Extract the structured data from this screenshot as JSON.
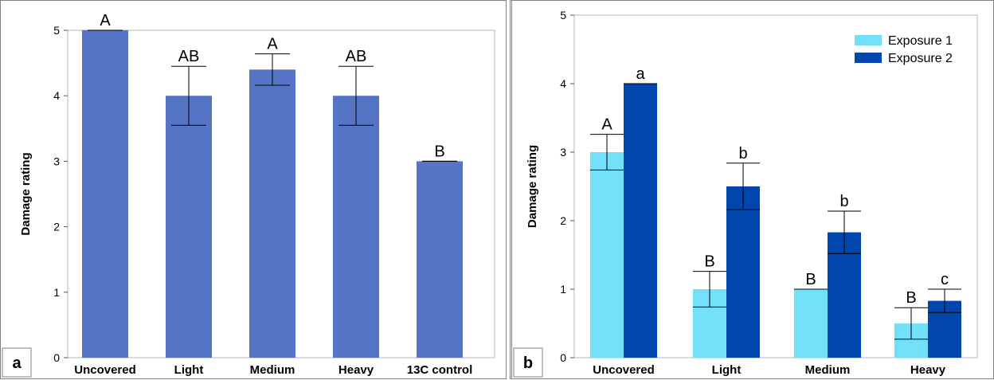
{
  "chart_data": [
    {
      "panel_label": "a",
      "type": "bar",
      "ylabel": "Damage rating",
      "xlabel": "",
      "ylim": [
        0,
        5
      ],
      "yticks": [
        "0",
        "1",
        "2",
        "3",
        "4",
        "5"
      ],
      "categories": [
        "Uncovered",
        "Light",
        "Medium",
        "Heavy",
        "13C control"
      ],
      "series": [
        {
          "values": [
            5.0,
            4.0,
            4.4,
            4.0,
            3.0
          ],
          "errors": [
            0,
            0.45,
            0.24,
            0.45,
            0
          ],
          "labels": [
            "A",
            "AB",
            "A",
            "AB",
            "B"
          ],
          "color": "#5574c6"
        }
      ],
      "grid": false,
      "legend": "none"
    },
    {
      "panel_label": "b",
      "type": "bar",
      "ylabel": "Damage rating",
      "xlabel": "",
      "ylim": [
        0,
        5
      ],
      "yticks": [
        "0",
        "1",
        "2",
        "3",
        "4",
        "5"
      ],
      "categories": [
        "Uncovered",
        "Light",
        "Medium",
        "Heavy"
      ],
      "series": [
        {
          "name": "Exposure 1",
          "values": [
            3.0,
            1.0,
            1.0,
            0.5
          ],
          "errors": [
            0.26,
            0.26,
            0,
            0.23
          ],
          "labels": [
            "A",
            "B",
            "B",
            "B"
          ],
          "color": "#72e0f8"
        },
        {
          "name": "Exposure 2",
          "values": [
            4.0,
            2.5,
            1.83,
            0.83
          ],
          "errors": [
            0,
            0.34,
            0.31,
            0.17
          ],
          "labels": [
            "a",
            "b",
            "b",
            "c"
          ],
          "color": "#0046ac"
        }
      ],
      "grid": false,
      "legend": "top-right"
    }
  ]
}
